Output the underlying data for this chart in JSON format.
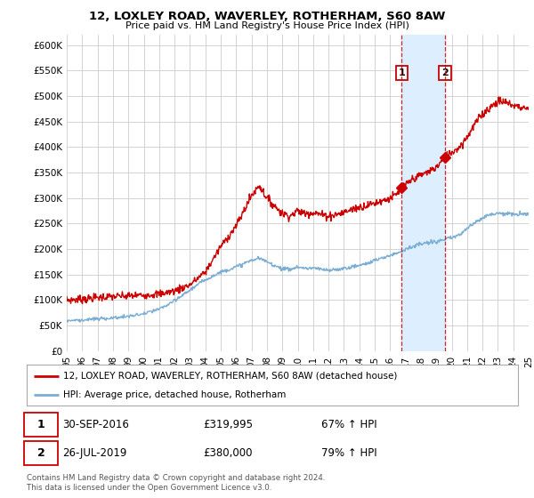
{
  "title": "12, LOXLEY ROAD, WAVERLEY, ROTHERHAM, S60 8AW",
  "subtitle": "Price paid vs. HM Land Registry's House Price Index (HPI)",
  "ylim": [
    0,
    620000
  ],
  "yticks": [
    0,
    50000,
    100000,
    150000,
    200000,
    250000,
    300000,
    350000,
    400000,
    450000,
    500000,
    550000,
    600000
  ],
  "ytick_labels": [
    "£0",
    "£50K",
    "£100K",
    "£150K",
    "£200K",
    "£250K",
    "£300K",
    "£350K",
    "£400K",
    "£450K",
    "£500K",
    "£550K",
    "£600K"
  ],
  "xtick_years": [
    1995,
    1996,
    1997,
    1998,
    1999,
    2000,
    2001,
    2002,
    2003,
    2004,
    2005,
    2006,
    2007,
    2008,
    2009,
    2010,
    2011,
    2012,
    2013,
    2014,
    2015,
    2016,
    2017,
    2018,
    2019,
    2020,
    2021,
    2022,
    2023,
    2024,
    2025
  ],
  "xtick_labels": [
    "95",
    "96",
    "97",
    "98",
    "99",
    "00",
    "01",
    "02",
    "03",
    "04",
    "05",
    "06",
    "07",
    "08",
    "09",
    "10",
    "11",
    "12",
    "13",
    "14",
    "15",
    "16",
    "17",
    "18",
    "19",
    "20",
    "21",
    "22",
    "23",
    "24",
    "25"
  ],
  "sale1_year": 2016.75,
  "sale1_price": 319995,
  "sale1_date": "30-SEP-2016",
  "sale1_price_str": "£319,995",
  "sale1_hpi": "67% ↑ HPI",
  "sale2_year": 2019.57,
  "sale2_price": 380000,
  "sale2_date": "26-JUL-2019",
  "sale2_price_str": "£380,000",
  "sale2_hpi": "79% ↑ HPI",
  "red_color": "#cc0000",
  "blue_color": "#7aadd4",
  "span_color": "#ddeeff",
  "background_color": "#ffffff",
  "grid_color": "#cccccc",
  "legend1_label": "12, LOXLEY ROAD, WAVERLEY, ROTHERHAM, S60 8AW (detached house)",
  "legend2_label": "HPI: Average price, detached house, Rotherham",
  "footer": "Contains HM Land Registry data © Crown copyright and database right 2024.\nThis data is licensed under the Open Government Licence v3.0."
}
